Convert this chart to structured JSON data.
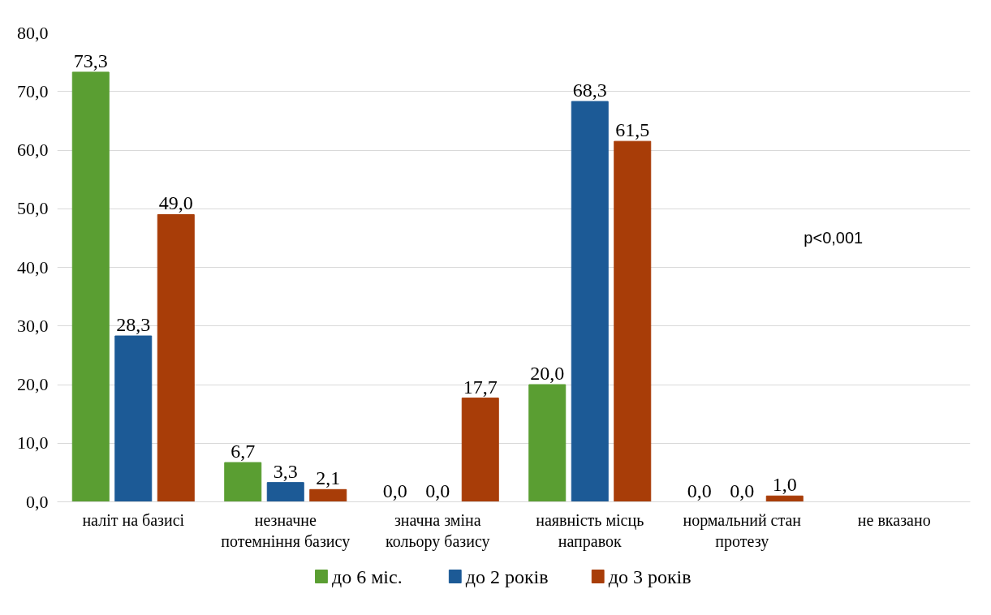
{
  "chart_data": {
    "type": "bar",
    "categories": [
      "наліт на базисі",
      "незначне потемніння базису",
      "значна зміна кольору базису",
      "наявність місць направок",
      "нормальний стан протезу",
      "не вказано"
    ],
    "series": [
      {
        "name": "до 6 міс.",
        "color": "#5a9e32",
        "values": [
          73.3,
          6.7,
          0.0,
          20.0,
          0.0,
          null
        ],
        "value_labels": [
          "73,3",
          "6,7",
          "0,0",
          "20,0",
          "0,0",
          null
        ]
      },
      {
        "name": "до 2 років",
        "color": "#1c5a96",
        "values": [
          28.3,
          3.3,
          0.0,
          68.3,
          0.0,
          null
        ],
        "value_labels": [
          "28,3",
          "3,3",
          "0,0",
          "68,3",
          "0,0",
          null
        ]
      },
      {
        "name": "до 3 років",
        "color": "#a83d08",
        "values": [
          49.0,
          2.1,
          17.7,
          61.5,
          1.0,
          null
        ],
        "value_labels": [
          "49,0",
          "2,1",
          "17,7",
          "61,5",
          "1,0",
          null
        ]
      }
    ],
    "ylim": [
      0,
      80
    ],
    "yticks": [
      {
        "value": 0,
        "label": "0,0"
      },
      {
        "value": 10,
        "label": "10,0"
      },
      {
        "value": 20,
        "label": "20,0"
      },
      {
        "value": 30,
        "label": "30,0"
      },
      {
        "value": 40,
        "label": "40,0"
      },
      {
        "value": 50,
        "label": "50,0"
      },
      {
        "value": 60,
        "label": "60,0"
      },
      {
        "value": 70,
        "label": "70,0"
      },
      {
        "value": 80,
        "label": "80,0"
      }
    ],
    "grid": "y",
    "legend": "bottom",
    "annotations": [
      "p<0,001"
    ]
  }
}
